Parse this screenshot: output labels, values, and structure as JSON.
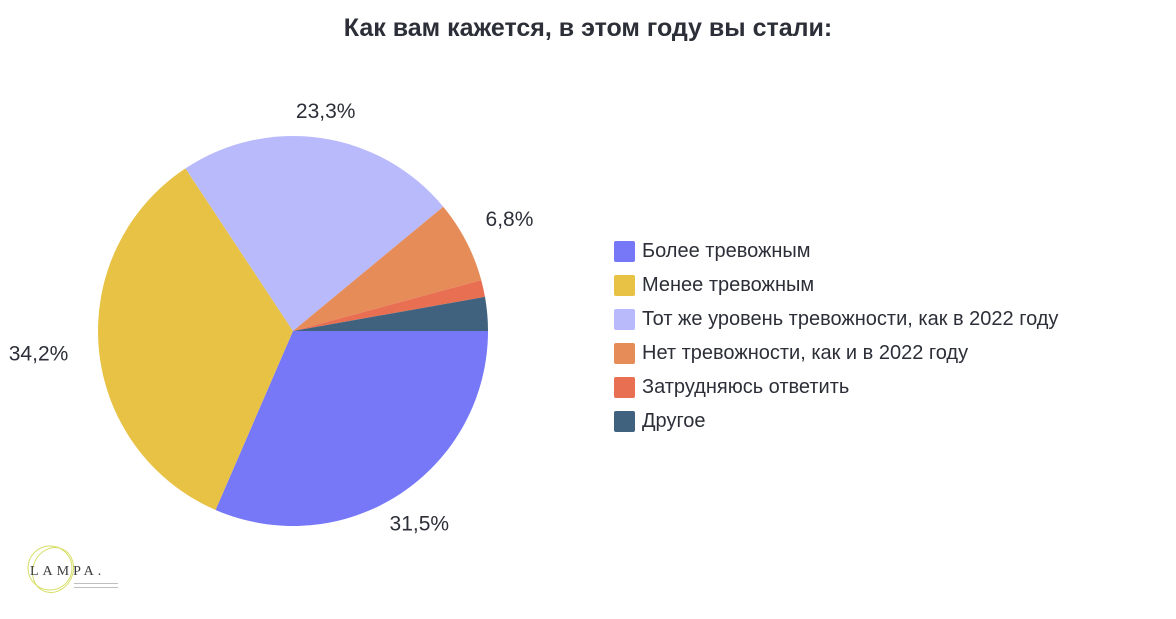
{
  "title": "Как вам кажется, в этом году вы стали:",
  "chart_data": {
    "type": "pie",
    "title": "Как вам кажется, в этом году вы стали:",
    "slices": [
      {
        "label": "Более тревожным",
        "value": 31.5,
        "value_label": "31,5%",
        "color": "#7678f7"
      },
      {
        "label": "Менее тревожным",
        "value": 34.2,
        "value_label": "34,2%",
        "color": "#e8c245"
      },
      {
        "label": "Тот же уровень тревожности, как в 2022 году",
        "value": 23.3,
        "value_label": "23,3%",
        "color": "#b9bafb"
      },
      {
        "label": "Нет тревожности, как и в 2022 году",
        "value": 6.8,
        "value_label": "6,8%",
        "color": "#e68c59"
      },
      {
        "label": "Затрудняюсь ответить",
        "value": 1.4,
        "value_label": "",
        "color": "#e86f52"
      },
      {
        "label": "Другое",
        "value": 2.8,
        "value_label": "",
        "color": "#41627f"
      }
    ],
    "legend_position": "right"
  },
  "logo": {
    "text": "LAMPA."
  }
}
